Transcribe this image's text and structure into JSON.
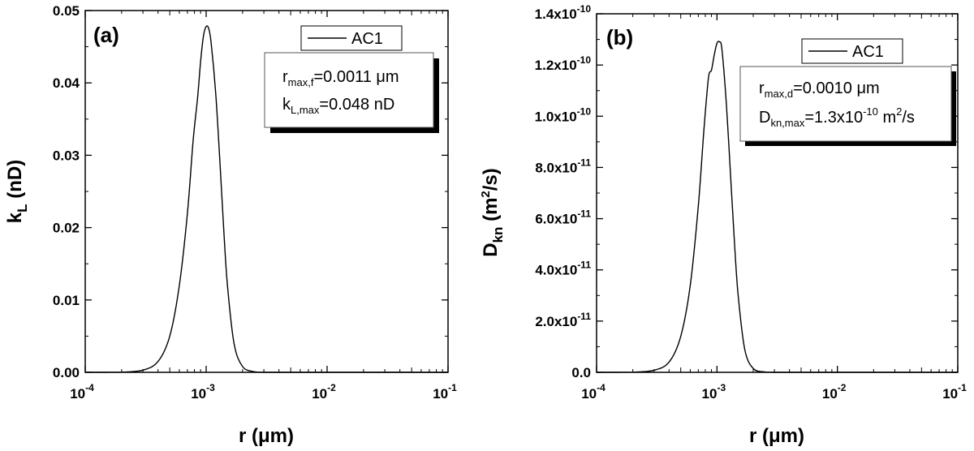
{
  "chart_data": [
    {
      "type": "line",
      "panel_label": "(a)",
      "x_scale": "log",
      "xlim": [
        0.0001,
        0.1
      ],
      "ylim": [
        0,
        0.05
      ],
      "x_ticks": [
        {
          "base": "10",
          "exp": "-4"
        },
        {
          "base": "10",
          "exp": "-3"
        },
        {
          "base": "10",
          "exp": "-2"
        },
        {
          "base": "10",
          "exp": "-1"
        }
      ],
      "y_ticks": [
        "0.00",
        "0.01",
        "0.02",
        "0.03",
        "0.04",
        "0.05"
      ],
      "xlabel": "r  (μm)",
      "ylabel": {
        "main": "k",
        "sub": "L",
        "unit": " (nD)"
      },
      "legend": [
        "AC1"
      ],
      "annotations": [
        {
          "main": "r",
          "sub": "max,f",
          "rest": "=0.0011 μm"
        },
        {
          "main": "k",
          "sub": "L,max",
          "rest": "=0.048 nD"
        }
      ],
      "series": [
        {
          "name": "AC1",
          "x": [
            0.0001,
            0.00015,
            0.0002,
            0.0003,
            0.0004,
            0.0005,
            0.0006,
            0.0007,
            0.00078,
            0.00085,
            0.0009,
            0.00095,
            0.001,
            0.00105,
            0.0011,
            0.0012,
            0.0013,
            0.0014,
            0.0015,
            0.0017,
            0.002,
            0.0025,
            0.003,
            0.005,
            0.01,
            0.1
          ],
          "y": [
            0,
            0,
            2e-05,
            0.0003,
            0.0015,
            0.005,
            0.012,
            0.022,
            0.032,
            0.038,
            0.043,
            0.0465,
            0.0478,
            0.0475,
            0.0455,
            0.0385,
            0.029,
            0.0195,
            0.012,
            0.004,
            0.0008,
            8e-05,
            0,
            0,
            0,
            0
          ]
        }
      ]
    },
    {
      "type": "line",
      "panel_label": "(b)",
      "x_scale": "log",
      "xlim": [
        0.0001,
        0.1
      ],
      "ylim": [
        0,
        1.4e-10
      ],
      "x_ticks": [
        {
          "base": "10",
          "exp": "-4"
        },
        {
          "base": "10",
          "exp": "-3"
        },
        {
          "base": "10",
          "exp": "-2"
        },
        {
          "base": "10",
          "exp": "-1"
        }
      ],
      "y_ticks": [
        {
          "base": "0.0",
          "exp": ""
        },
        {
          "base": "2.0x10",
          "exp": "-11"
        },
        {
          "base": "4.0x10",
          "exp": "-11"
        },
        {
          "base": "6.0x10",
          "exp": "-11"
        },
        {
          "base": "8.0x10",
          "exp": "-11"
        },
        {
          "base": "1.0x10",
          "exp": "-10"
        },
        {
          "base": "1.2x10",
          "exp": "-10"
        },
        {
          "base": "1.4x10",
          "exp": "-10"
        }
      ],
      "xlabel": "r  (μm)",
      "ylabel": {
        "main": "D",
        "sub": "kn",
        "unit_a": " (m",
        "unit_sup": "2",
        "unit_b": "/s)"
      },
      "legend": [
        "AC1"
      ],
      "annotations": [
        {
          "main": "r",
          "sub": "max,d",
          "rest": "=0.0010 μm"
        },
        {
          "main": "D",
          "sub": "kn,max",
          "mid": "=1.3x10",
          "sup": "-10",
          "mid2": " m",
          "sup2": "2",
          "rest": "/s"
        }
      ],
      "series": [
        {
          "name": "AC1",
          "x": [
            0.0001,
            0.00015,
            0.0002,
            0.0003,
            0.0004,
            0.0005,
            0.0006,
            0.0007,
            0.00078,
            0.00085,
            0.0009,
            0.00095,
            0.001,
            0.00105,
            0.0011,
            0.0012,
            0.0013,
            0.0014,
            0.0015,
            0.0017,
            0.002,
            0.0025,
            0.003,
            0.005,
            0.01,
            0.1
          ],
          "y": [
            0,
            0,
            5e-14,
            8e-13,
            4e-12,
            1.4e-11,
            3.4e-11,
            6.5e-11,
            9.5e-11,
            1.15e-10,
            1.18e-10,
            1.24e-10,
            1.285e-10,
            1.29e-10,
            1.26e-10,
            1.04e-10,
            7.6e-11,
            5e-11,
            3e-11,
            9e-12,
            1.5e-12,
            1.5e-13,
            0,
            0,
            0,
            0
          ]
        }
      ]
    }
  ]
}
